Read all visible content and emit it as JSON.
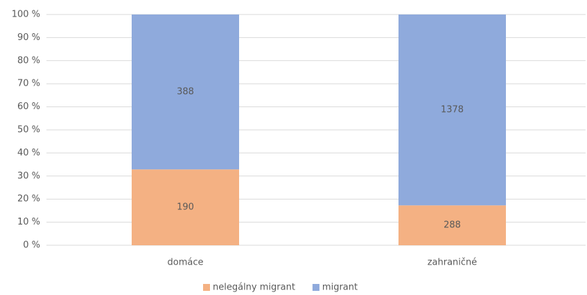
{
  "chart_data": {
    "type": "bar",
    "stacked": "percent",
    "categories": [
      "domáce",
      "zahraničné"
    ],
    "series": [
      {
        "name": "nelegálny migrant",
        "color": "#f4b183",
        "values": [
          190,
          288
        ]
      },
      {
        "name": "migrant",
        "color": "#8faadc",
        "values": [
          388,
          1378
        ]
      }
    ],
    "ylim": [
      0,
      100
    ],
    "yticks": [
      {
        "value": 0,
        "label": "0 %"
      },
      {
        "value": 10,
        "label": "10 %"
      },
      {
        "value": 20,
        "label": "20 %"
      },
      {
        "value": 30,
        "label": "30 %"
      },
      {
        "value": 40,
        "label": "40 %"
      },
      {
        "value": 50,
        "label": "50 %"
      },
      {
        "value": 60,
        "label": "60 %"
      },
      {
        "value": 70,
        "label": "70 %"
      },
      {
        "value": 80,
        "label": "80 %"
      },
      {
        "value": 90,
        "label": "90 %"
      },
      {
        "value": 100,
        "label": "100 %"
      }
    ],
    "grid": true,
    "legend": "bottom"
  }
}
